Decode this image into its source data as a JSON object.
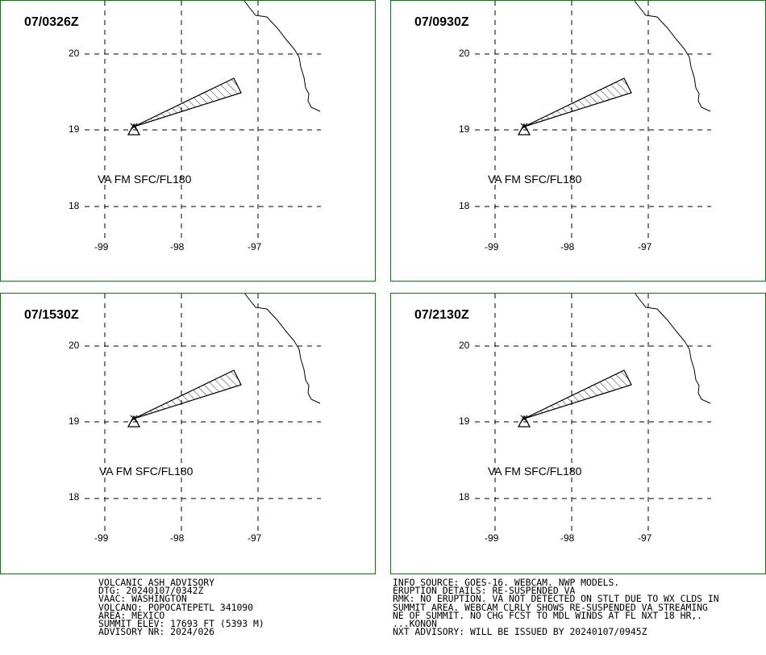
{
  "panels": [
    {
      "title": "07/0326Z",
      "label": "VA FM SFC/FL180"
    },
    {
      "title": "07/0930Z",
      "label": "VA FM SFC/FL180"
    },
    {
      "title": "07/1530Z",
      "label": "VA FM SFC/FL180"
    },
    {
      "title": "07/2130Z",
      "label": "VA FM SFC/FL180"
    }
  ],
  "axis": {
    "lat_labels": [
      "20",
      "19",
      "18"
    ],
    "lon_labels": [
      "-99",
      "-98",
      "-97"
    ]
  },
  "advisory_left": [
    "VOLCANIC ASH ADVISORY",
    "DTG: 20240107/0342Z",
    "VAAC: WASHINGTON",
    "VOLCANO: POPOCATEPETL 341090",
    "AREA: MEXICO",
    "SUMMIT ELEV: 17693 FT (5393 M)",
    "ADVISORY NR: 2024/026"
  ],
  "advisory_right": [
    "INFO SOURCE: GOES-16. WEBCAM. NWP MODELS.",
    "ERUPTION DETAILS: RE-SUSPENDED VA",
    "RMK: NO ERUPTION. VA NOT DETECTED ON STLT DUE TO WX CLDS IN",
    "SUMMIT AREA. WEBCAM CLRLY SHOWS RE-SUSPENDED VA STREAMING",
    "NE OF SUMMIT. NO CHG FCST TO MDL WINDS AT FL NXT 18 HR,.",
    "...KONON",
    "NXT ADVISORY: WILL BE ISSUED BY 20240107/0945Z"
  ],
  "colors": {
    "frame": "#008000",
    "lines": "#000000"
  },
  "volcano_symbol": "volcano-triangle-icon"
}
